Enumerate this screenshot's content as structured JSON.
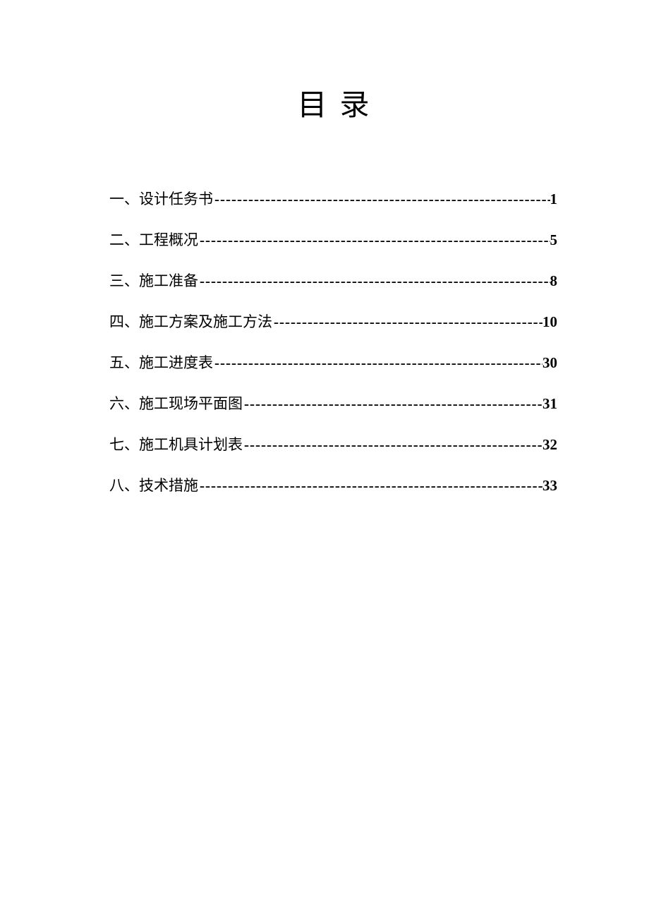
{
  "title": "目录",
  "toc": {
    "entries": [
      {
        "label": "一、设计任务书 ",
        "page": "1"
      },
      {
        "label": "二、工程概况 ",
        "page": "5"
      },
      {
        "label": "三、施工准备 ",
        "page": "8"
      },
      {
        "label": "四、施工方案及施工方法",
        "page": "10"
      },
      {
        "label": "五、施工进度表",
        "page": "30"
      },
      {
        "label": "六、施工现场平面图",
        "page": "31"
      },
      {
        "label": "七、施工机具计划表",
        "page": "32"
      },
      {
        "label": "八、技术措施",
        "page": "33"
      }
    ]
  },
  "colors": {
    "background": "#ffffff",
    "text": "#000000"
  },
  "typography": {
    "title_fontsize": 42,
    "entry_fontsize": 21,
    "page_number_weight": "bold",
    "font_family_body": "SimSun",
    "font_family_page": "Times New Roman"
  }
}
